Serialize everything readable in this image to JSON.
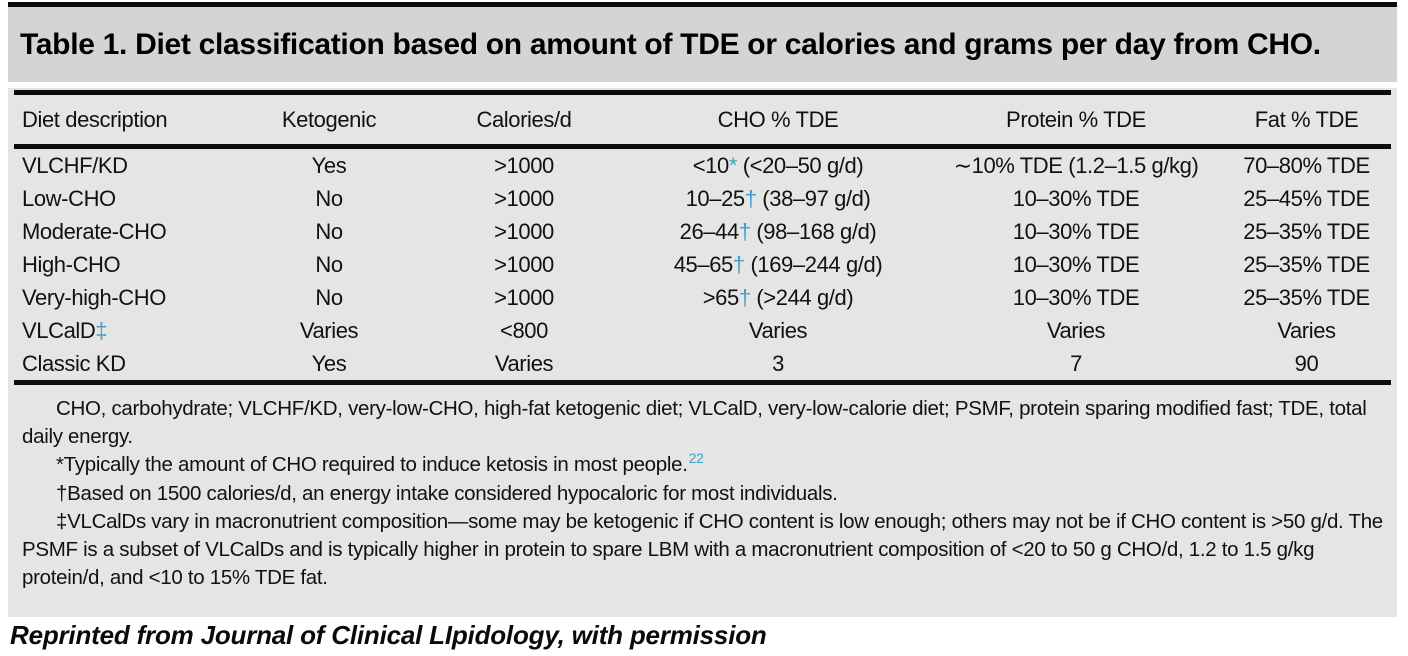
{
  "title": "Table 1. Diet classification based on amount of TDE or calories and grams per day from CHO.",
  "caption": "Reprinted from Journal of Clinical LIpidology, with permission",
  "colors": {
    "footnote_marker_blue": "#3f9fca",
    "title_bar_bg": "#d4d4d4",
    "table_bg": "#e5e5e5",
    "rule_black": "#0c0c0c"
  },
  "table": {
    "headers": [
      "Diet description",
      "Ketogenic",
      "Calories/d",
      "CHO % TDE",
      "Protein % TDE",
      "Fat % TDE"
    ],
    "rows": [
      [
        [
          {
            "t": "VLCHF/KD"
          }
        ],
        [
          {
            "t": "Yes"
          }
        ],
        [
          {
            "t": ">1000"
          }
        ],
        [
          {
            "t": "<10"
          },
          {
            "t": "*",
            "blue": true
          },
          {
            "t": " (<20–50 g/d)"
          }
        ],
        [
          {
            "t": "∼10% TDE (1.2–1.5 g/kg)"
          }
        ],
        [
          {
            "t": "70–80% TDE"
          }
        ]
      ],
      [
        [
          {
            "t": "Low-CHO"
          }
        ],
        [
          {
            "t": "No"
          }
        ],
        [
          {
            "t": ">1000"
          }
        ],
        [
          {
            "t": "10–25"
          },
          {
            "t": "†",
            "blue": true
          },
          {
            "t": " (38–97 g/d)"
          }
        ],
        [
          {
            "t": "10–30% TDE"
          }
        ],
        [
          {
            "t": "25–45% TDE"
          }
        ]
      ],
      [
        [
          {
            "t": "Moderate-CHO"
          }
        ],
        [
          {
            "t": "No"
          }
        ],
        [
          {
            "t": ">1000"
          }
        ],
        [
          {
            "t": "26–44"
          },
          {
            "t": "†",
            "blue": true
          },
          {
            "t": " (98–168 g/d)"
          }
        ],
        [
          {
            "t": "10–30% TDE"
          }
        ],
        [
          {
            "t": "25–35% TDE"
          }
        ]
      ],
      [
        [
          {
            "t": "High-CHO"
          }
        ],
        [
          {
            "t": "No"
          }
        ],
        [
          {
            "t": ">1000"
          }
        ],
        [
          {
            "t": "45–65"
          },
          {
            "t": "†",
            "blue": true
          },
          {
            "t": " (169–244 g/d)"
          }
        ],
        [
          {
            "t": "10–30% TDE"
          }
        ],
        [
          {
            "t": "25–35% TDE"
          }
        ]
      ],
      [
        [
          {
            "t": "Very-high-CHO"
          }
        ],
        [
          {
            "t": "No"
          }
        ],
        [
          {
            "t": ">1000"
          }
        ],
        [
          {
            "t": ">65"
          },
          {
            "t": "†",
            "blue": true
          },
          {
            "t": " (>244 g/d)"
          }
        ],
        [
          {
            "t": "10–30% TDE"
          }
        ],
        [
          {
            "t": "25–35% TDE"
          }
        ]
      ],
      [
        [
          {
            "t": "VLCalD"
          },
          {
            "t": "‡",
            "blue": true
          }
        ],
        [
          {
            "t": "Varies"
          }
        ],
        [
          {
            "t": "<800"
          }
        ],
        [
          {
            "t": "Varies"
          }
        ],
        [
          {
            "t": "Varies"
          }
        ],
        [
          {
            "t": "Varies"
          }
        ]
      ],
      [
        [
          {
            "t": "Classic KD"
          }
        ],
        [
          {
            "t": "Yes"
          }
        ],
        [
          {
            "t": "Varies"
          }
        ],
        [
          {
            "t": "3"
          }
        ],
        [
          {
            "t": "7"
          }
        ],
        [
          {
            "t": "90"
          }
        ]
      ]
    ]
  },
  "footnotes": [
    [
      {
        "t": "CHO, carbohydrate; VLCHF/KD, very-low-CHO, high-fat ketogenic diet; VLCalD, very-low-calorie diet; PSMF, protein sparing modified fast; TDE, total daily energy."
      }
    ],
    [
      {
        "t": "*Typically the amount of CHO required to induce ketosis in most people."
      },
      {
        "t": "22",
        "blue": true,
        "sup": true
      }
    ],
    [
      {
        "t": "†Based on 1500 calories/d, an energy intake considered hypocaloric for most individuals."
      }
    ],
    [
      {
        "t": "‡VLCalDs vary in macronutrient composition—some may be ketogenic if CHO content is low enough; others may not be if CHO content is >50 g/d. The PSMF is a subset of VLCalDs and is typically higher in protein to spare LBM with a macronutrient composition of <20 to 50 g CHO/d, 1.2 to 1.5 g/kg protein/d, and <10 to 15% TDE fat."
      }
    ]
  ]
}
